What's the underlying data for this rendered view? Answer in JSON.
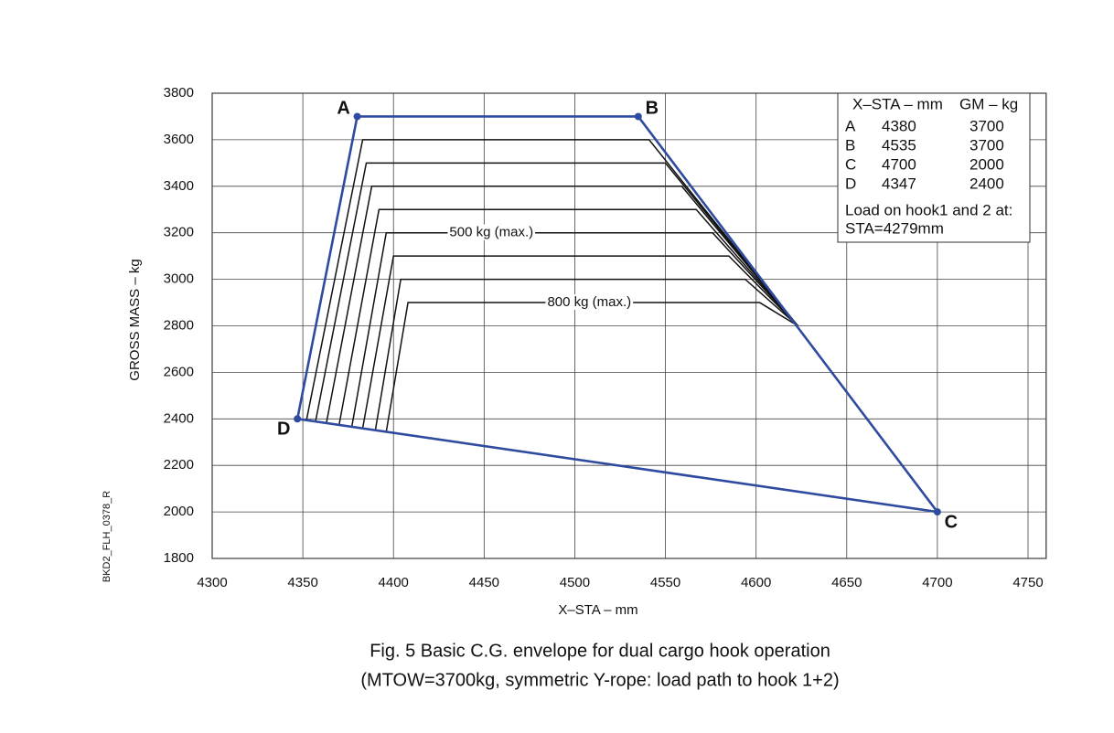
{
  "chart_data": {
    "type": "line",
    "x_label": "X–STA  –  mm",
    "y_label": "GROSS MASS  –  kg",
    "xlim": [
      4300,
      4760
    ],
    "ylim": [
      1800,
      3800
    ],
    "xticks": [
      4300,
      4350,
      4400,
      4450,
      4500,
      4550,
      4600,
      4650,
      4700,
      4750
    ],
    "yticks": [
      1800,
      2000,
      2200,
      2400,
      2600,
      2800,
      3000,
      3200,
      3400,
      3600,
      3800
    ],
    "grid": true,
    "series": [
      {
        "color": "#2f4ba0",
        "closed": true,
        "markers": true,
        "point_labels": [
          "A",
          "B",
          "C",
          "D"
        ],
        "x": [
          4380,
          4535,
          4700,
          4347
        ],
        "values": [
          3700,
          3700,
          2000,
          2400
        ]
      },
      {
        "color": "#111111",
        "x": [
          4352,
          4383,
          4541,
          4623
        ],
        "values": [
          2394,
          3600,
          3600,
          2800
        ]
      },
      {
        "color": "#111111",
        "x": [
          4357,
          4385,
          4550,
          4623
        ],
        "values": [
          2389,
          3500,
          3500,
          2800
        ]
      },
      {
        "color": "#111111",
        "x": [
          4363,
          4388,
          4559,
          4623
        ],
        "values": [
          2382,
          3400,
          3400,
          2800
        ]
      },
      {
        "color": "#111111",
        "x": [
          4370,
          4392,
          4567,
          4623
        ],
        "values": [
          2374,
          3300,
          3300,
          2800
        ]
      },
      {
        "color": "#111111",
        "x": [
          4377,
          4396,
          4576,
          4623
        ],
        "values": [
          2366,
          3200,
          3200,
          2800
        ]
      },
      {
        "color": "#111111",
        "x": [
          4383,
          4400,
          4585,
          4623
        ],
        "values": [
          2359,
          3100,
          3100,
          2800
        ]
      },
      {
        "color": "#111111",
        "x": [
          4390,
          4404,
          4594,
          4623
        ],
        "values": [
          2351,
          3000,
          3000,
          2800
        ]
      },
      {
        "color": "#111111",
        "x": [
          4396,
          4408,
          4602,
          4623
        ],
        "values": [
          2344,
          2900,
          2900,
          2800
        ]
      }
    ],
    "annotations": [
      {
        "text": "500 kg (max.)",
        "x": 4454,
        "y": 3200
      },
      {
        "text": "800 kg (max.)",
        "x": 4508,
        "y": 2900
      }
    ],
    "table": {
      "headers": [
        "X–STA – mm",
        "GM – kg"
      ],
      "rows": [
        [
          "A",
          4380,
          3700
        ],
        [
          "B",
          4535,
          3700
        ],
        [
          "C",
          4700,
          2000
        ],
        [
          "D",
          4347,
          2400
        ]
      ],
      "note": [
        "Load on hook1 and 2 at:",
        "STA=4279mm"
      ]
    },
    "side_label": "BKD2_FLH_0378_R",
    "caption": [
      "Fig. 5   Basic C.G. envelope for dual cargo hook operation",
      "(MTOW=3700kg, symmetric Y-rope: load path to hook 1+2)"
    ]
  }
}
